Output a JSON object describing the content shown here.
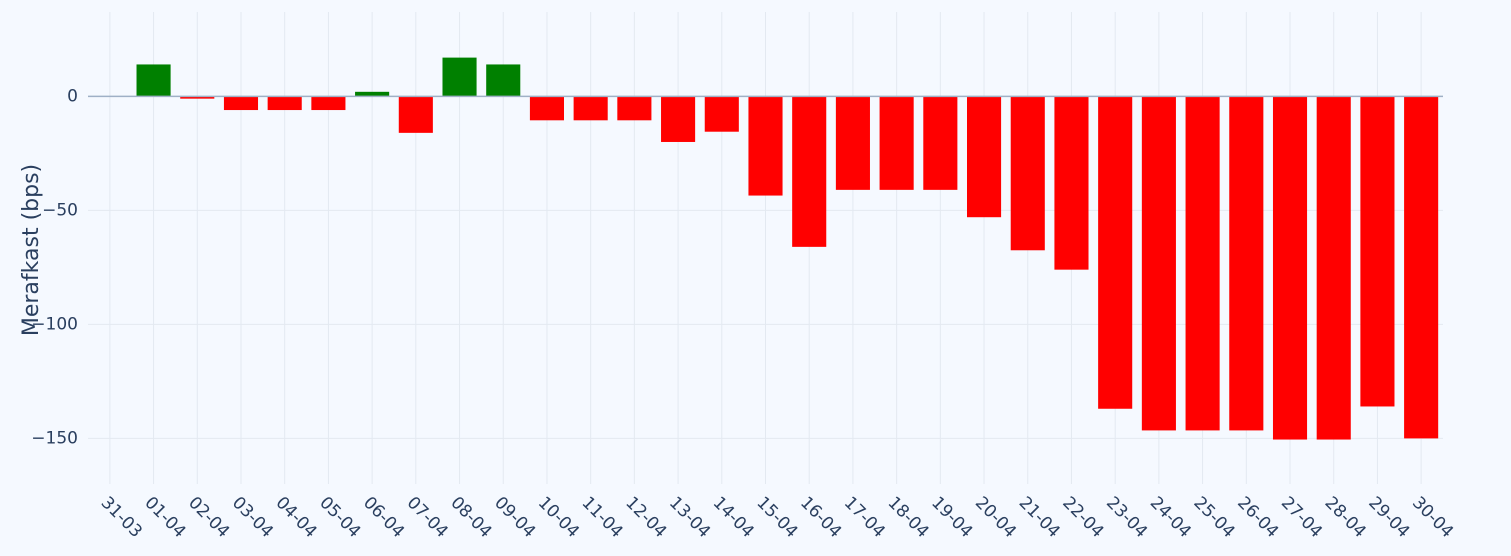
{
  "chart_data": {
    "type": "bar",
    "y_label": "Merafkast (bps)",
    "categories": [
      "31-03",
      "01-04",
      "02-04",
      "03-04",
      "04-04",
      "05-04",
      "06-04",
      "07-04",
      "08-04",
      "09-04",
      "10-04",
      "11-04",
      "12-04",
      "13-04",
      "14-04",
      "15-04",
      "16-04",
      "17-04",
      "18-04",
      "19-04",
      "20-04",
      "21-04",
      "22-04",
      "23-04",
      "24-04",
      "25-04",
      "26-04",
      "27-04",
      "28-04",
      "29-04",
      "30-04"
    ],
    "values": [
      null,
      14,
      -1,
      -6,
      -6,
      -6,
      2,
      -16,
      17,
      14,
      -10.5,
      -10.5,
      -10.5,
      -20,
      -15.5,
      -43.5,
      -66,
      -41,
      -41,
      -41,
      -53,
      -67.5,
      -76,
      -137,
      -146.5,
      -146.5,
      -146.5,
      -150.5,
      -150.5,
      -136,
      -150
    ],
    "colors": {
      "positive": "#008000",
      "negative": "#ff0000"
    },
    "ylim": [
      -170,
      37
    ],
    "yticks": [
      {
        "value": -150,
        "label": "−150"
      },
      {
        "value": -100,
        "label": "−100"
      },
      {
        "value": -50,
        "label": "−50"
      },
      0
    ],
    "grid": true
  }
}
